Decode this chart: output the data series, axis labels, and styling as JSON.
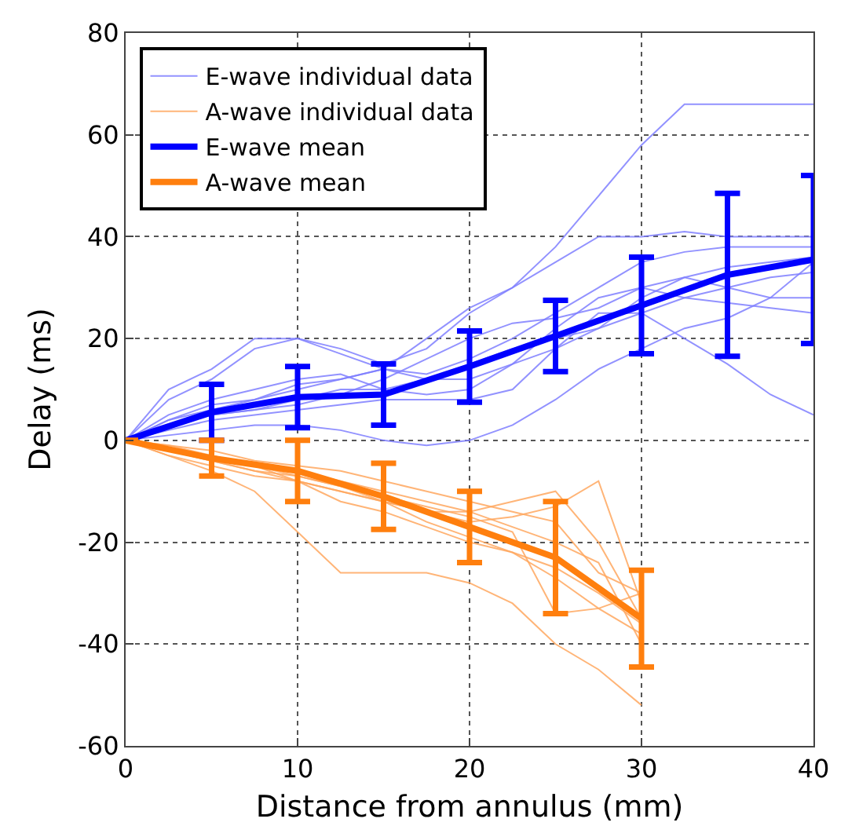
{
  "chart_data": {
    "type": "line",
    "xlabel": "Distance from annulus (mm)",
    "ylabel": "Delay (ms)",
    "xlim": [
      0,
      40
    ],
    "xticks": [
      0,
      10,
      20,
      30,
      40
    ],
    "ylim": [
      -60,
      80
    ],
    "yticks": [
      -60,
      -40,
      -20,
      0,
      20,
      40,
      60,
      80
    ],
    "grid": true,
    "legend": "top left",
    "marker": "none",
    "line_style": "solid",
    "series": [
      {
        "name": "E-wave individual data",
        "color": "#7f7fff",
        "x": [
          0,
          2.5,
          5,
          7.5,
          10,
          12.5,
          15,
          17.5,
          20,
          22.5,
          25,
          27.5,
          30,
          32.5,
          35,
          37.5,
          40
        ],
        "values": [
          0,
          8,
          12,
          18,
          20,
          18,
          15,
          18,
          25,
          30,
          38,
          48,
          58,
          66,
          66,
          66,
          66
        ]
      },
      {
        "color": "#7f7fff",
        "x": [
          0,
          2.5,
          5,
          7.5,
          10,
          12.5,
          15,
          17.5,
          20,
          22.5,
          25,
          27.5,
          30,
          32.5,
          35,
          37.5,
          40
        ],
        "values": [
          0,
          10,
          14,
          20,
          20,
          17,
          14,
          13,
          16,
          20,
          25,
          30,
          35,
          37,
          38,
          38,
          38
        ]
      },
      {
        "color": "#7f7fff",
        "x": [
          0,
          2.5,
          5,
          7.5,
          10,
          12.5,
          15,
          17.5,
          20,
          22.5,
          25,
          27.5,
          30,
          32.5,
          35,
          37.5,
          40
        ],
        "values": [
          0,
          4,
          7,
          8,
          10,
          12,
          14,
          20,
          26,
          30,
          35,
          40,
          40,
          41,
          40,
          40,
          40
        ]
      },
      {
        "color": "#7f7fff",
        "x": [
          0,
          2.5,
          5,
          7.5,
          10,
          12.5,
          15,
          17.5,
          20,
          22.5,
          25,
          27.5,
          30,
          32.5,
          35,
          37.5,
          40
        ],
        "values": [
          0,
          3,
          5,
          6,
          7,
          9,
          12,
          16,
          20,
          23,
          24,
          26,
          30,
          28,
          27,
          26,
          25
        ]
      },
      {
        "color": "#7f7fff",
        "x": [
          0,
          2.5,
          5,
          7.5,
          10,
          12.5,
          15,
          17.5,
          20,
          22.5,
          25,
          27.5,
          30,
          32.5,
          35,
          37.5,
          40
        ],
        "values": [
          0,
          2,
          4,
          5,
          6,
          7,
          8,
          8,
          8,
          10,
          18,
          25,
          25,
          20,
          15,
          9,
          5
        ]
      },
      {
        "color": "#7f7fff",
        "x": [
          0,
          2.5,
          5,
          7.5,
          10,
          12.5,
          15,
          17.5,
          20,
          22.5,
          25,
          27.5,
          30,
          32.5,
          35,
          37.5,
          40
        ],
        "values": [
          0,
          1,
          2,
          3,
          3,
          2,
          0,
          -1,
          0,
          3,
          8,
          14,
          18,
          22,
          24,
          28,
          35
        ]
      },
      {
        "color": "#7f7fff",
        "x": [
          0,
          2.5,
          5,
          7.5,
          10,
          12.5,
          15,
          17.5,
          20,
          22.5,
          25,
          27.5,
          30,
          32.5,
          35,
          37.5,
          40
        ],
        "values": [
          0,
          5,
          8,
          10,
          12,
          13,
          10,
          9,
          10,
          15,
          22,
          28,
          30,
          32,
          34,
          35,
          36
        ]
      },
      {
        "color": "#7f7fff",
        "x": [
          0,
          2.5,
          5,
          7.5,
          10,
          12.5,
          15,
          17.5,
          20,
          22.5,
          25,
          27.5,
          30,
          32.5,
          35,
          37.5,
          40
        ],
        "values": [
          0,
          4,
          6,
          8,
          11,
          12,
          14,
          12,
          12,
          15,
          18,
          22,
          28,
          32,
          30,
          28,
          28
        ]
      },
      {
        "color": "#7f7fff",
        "x": [
          0,
          2.5,
          5,
          7.5,
          10,
          12.5,
          15,
          17.5,
          20,
          22.5,
          25,
          27.5,
          30,
          32.5,
          35,
          37.5,
          40
        ],
        "values": [
          0,
          3,
          5,
          6,
          8,
          10,
          10,
          12,
          15,
          18,
          20,
          22,
          25,
          28,
          30,
          32,
          33
        ]
      },
      {
        "name": "A-wave individual data",
        "color": "#ffa860",
        "x": [
          0,
          2.5,
          5,
          7.5,
          10,
          12.5,
          15,
          17.5,
          20,
          22.5,
          25,
          27.5,
          30
        ],
        "values": [
          0,
          -3,
          -6,
          -10,
          -18,
          -26,
          -26,
          -26,
          -28,
          -32,
          -40,
          -45,
          -52
        ]
      },
      {
        "color": "#ffa860",
        "x": [
          0,
          2.5,
          5,
          7.5,
          10,
          12.5,
          15,
          17.5,
          20,
          22.5,
          25,
          27.5,
          30
        ],
        "values": [
          0,
          -2,
          -4,
          -6,
          -8,
          -10,
          -12,
          -14,
          -14,
          -12,
          -10,
          -20,
          -35
        ]
      },
      {
        "color": "#ffa860",
        "x": [
          0,
          2.5,
          5,
          7.5,
          10,
          12.5,
          15,
          17.5,
          20,
          22.5,
          25,
          27.5,
          30
        ],
        "values": [
          0,
          -1,
          -2,
          -4,
          -5,
          -6,
          -8,
          -10,
          -12,
          -14,
          -16,
          -26,
          -30
        ]
      },
      {
        "color": "#ffa860",
        "x": [
          0,
          2.5,
          5,
          7.5,
          10,
          12.5,
          15,
          17.5,
          20,
          22.5,
          25,
          27.5,
          30
        ],
        "values": [
          0,
          -2,
          -3,
          -5,
          -7,
          -9,
          -12,
          -16,
          -19,
          -22,
          -27,
          -33,
          -38
        ]
      },
      {
        "color": "#ffa860",
        "x": [
          0,
          2.5,
          5,
          7.5,
          10,
          12.5,
          15,
          17.5,
          20,
          22.5,
          25,
          27.5,
          30
        ],
        "values": [
          0,
          -1,
          -3,
          -5,
          -8,
          -10,
          -12,
          -14,
          -16,
          -15,
          -13,
          -8,
          -32
        ]
      },
      {
        "color": "#ffa860",
        "x": [
          0,
          2.5,
          5,
          7.5,
          10,
          12.5,
          15,
          17.5,
          20,
          22.5,
          25,
          27.5,
          30
        ],
        "values": [
          0,
          -3,
          -5,
          -7,
          -8,
          -12,
          -14,
          -17,
          -20,
          -22,
          -25,
          -30,
          -36
        ]
      },
      {
        "color": "#ffa860",
        "x": [
          0,
          2.5,
          5,
          7.5,
          10,
          12.5,
          15,
          17.5,
          20,
          22.5,
          25,
          27.5,
          30
        ],
        "values": [
          0,
          -2,
          -4,
          -6,
          -7,
          -9,
          -11,
          -13,
          -15,
          -18,
          -34,
          -33,
          -30
        ]
      },
      {
        "color": "#ffa860",
        "x": [
          0,
          2.5,
          5,
          7.5,
          10,
          12.5,
          15,
          17.5,
          20,
          22.5,
          25,
          27.5,
          30
        ],
        "values": [
          0,
          -2,
          -3,
          -5,
          -6,
          -8,
          -10,
          -12,
          -14,
          -17,
          -20,
          -24,
          -40
        ]
      },
      {
        "name": "E-wave mean",
        "color": "#0000ff",
        "x": [
          0,
          5,
          10,
          15,
          20,
          25,
          30,
          35,
          40
        ],
        "values": [
          0,
          5.5,
          8.5,
          9,
          14.5,
          20.5,
          26.5,
          32.5,
          35.5
        ],
        "errors": [
          null,
          5.5,
          6,
          6,
          7,
          7,
          9.5,
          16,
          16.5
        ]
      },
      {
        "name": "A-wave mean",
        "color": "#ff7f0e",
        "x": [
          0,
          5,
          10,
          15,
          20,
          25,
          30
        ],
        "values": [
          0,
          -3.5,
          -6,
          -11,
          -17,
          -23,
          -35
        ],
        "errors": [
          null,
          3.5,
          6,
          6.5,
          7,
          11,
          9.5
        ]
      }
    ]
  }
}
